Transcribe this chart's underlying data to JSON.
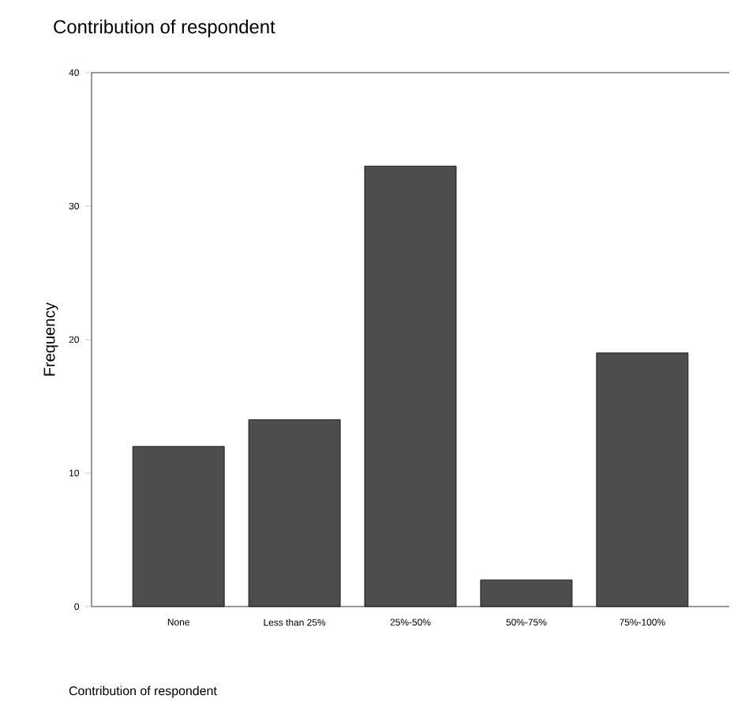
{
  "chart_data": {
    "type": "bar",
    "title": "Contribution of respondent",
    "xlabel": "Contribution of respondent",
    "ylabel": "Frequency",
    "categories": [
      "None",
      "Less than 25%",
      "25%-50%",
      "50%-75%",
      "75%-100%"
    ],
    "values": [
      12,
      14,
      33,
      2,
      19
    ],
    "color": "#4d4d4d",
    "ylim": [
      0,
      40
    ],
    "yticks": [
      0,
      10,
      20,
      30,
      40
    ]
  }
}
